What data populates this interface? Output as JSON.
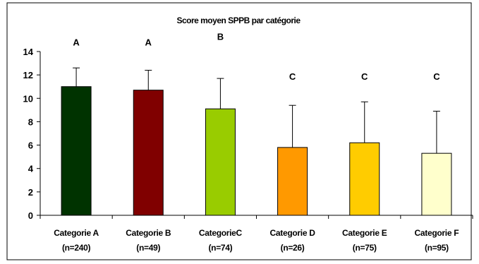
{
  "chart_data": {
    "type": "bar",
    "title": "Score moyen SPPB par catégorie",
    "xlabel": "",
    "ylabel": "",
    "ylim": [
      0,
      14
    ],
    "yticks": [
      0,
      2,
      4,
      6,
      8,
      10,
      12,
      14
    ],
    "grid": false,
    "legend": "none",
    "categories": [
      {
        "name": "Categorie A",
        "n": "(n=240)"
      },
      {
        "name": "Categorie B",
        "n": "(n=49)"
      },
      {
        "name": "CategorieC",
        "n": "(n=74)"
      },
      {
        "name": "Categorie D",
        "n": "(n=26)"
      },
      {
        "name": "Categorie E",
        "n": "(n=75)"
      },
      {
        "name": "Categorie F",
        "n": "(n=95)"
      }
    ],
    "values": [
      11.0,
      10.7,
      9.1,
      5.8,
      6.2,
      5.3
    ],
    "error_upper": [
      1.6,
      1.7,
      2.6,
      3.6,
      3.5,
      3.6
    ],
    "significance_letters": [
      "A",
      "A",
      "B",
      "C",
      "C",
      "C"
    ],
    "colors": [
      "#003300",
      "#800000",
      "#99cc00",
      "#ff9900",
      "#ffcc00",
      "#ffffcc"
    ]
  }
}
